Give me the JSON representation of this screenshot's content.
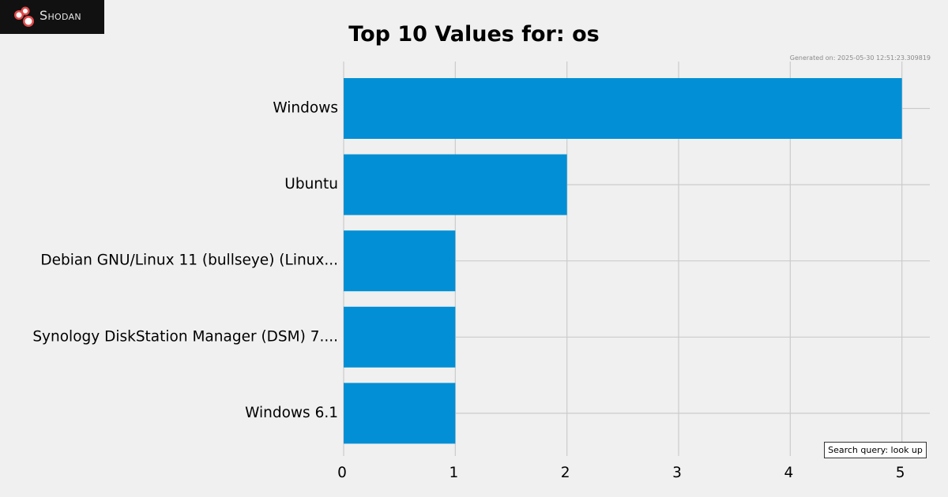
{
  "branding": {
    "logo_text": "Shodan",
    "logo_icon": "shodan-logo-icon",
    "logo_bg": "#111111"
  },
  "header": {
    "generated": "Generated on: 2025-05-30 12:51:23.309819"
  },
  "footer": {
    "query": "Search query: look up"
  },
  "chart_data": {
    "type": "bar",
    "orientation": "horizontal",
    "title": "Top 10 Values for: os",
    "categories": [
      "Windows",
      "Ubuntu",
      "Debian GNU/Linux 11 (bullseye) (Linux...",
      "Synology DiskStation Manager (DSM) 7....",
      "Windows 6.1"
    ],
    "values": [
      5,
      2,
      1,
      1,
      1
    ],
    "xlim": [
      0,
      5.25
    ],
    "xticks": [
      "0",
      "1",
      "2",
      "3",
      "4",
      "5"
    ],
    "xlabel": "",
    "ylabel": "",
    "grid": true,
    "bar_color": "#028fd5",
    "grid_color": "#cbcbcb",
    "background": "#f0f0f0"
  }
}
